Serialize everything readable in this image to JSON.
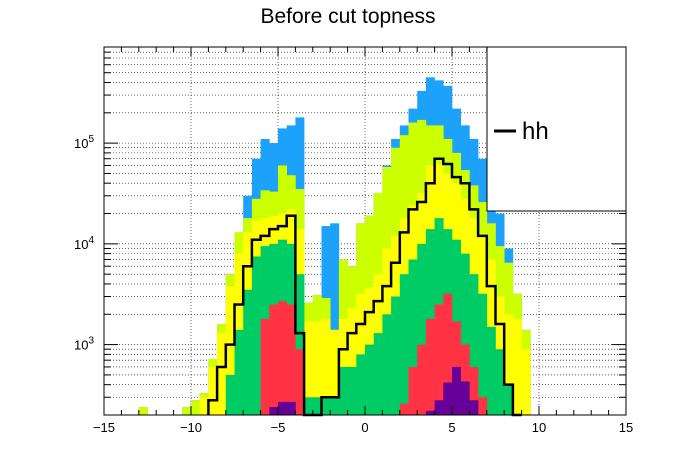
{
  "chart_data": {
    "type": "area",
    "title": "Before cut topness",
    "xlabel": "",
    "ylabel": "",
    "x_scale": "linear",
    "y_scale": "log",
    "xlim": [
      -15,
      15
    ],
    "ylim": [
      200,
      900000
    ],
    "grid": true,
    "x_ticks": [
      -15,
      -10,
      -5,
      0,
      5,
      10,
      15
    ],
    "x_tick_labels": [
      "−15",
      "−10",
      "−5",
      "0",
      "5",
      "10",
      "15"
    ],
    "y_ticks": [
      1000,
      10000,
      100000
    ],
    "y_tick_labels": [
      {
        "base": "10",
        "exp": "3"
      },
      {
        "base": "10",
        "exp": "4"
      },
      {
        "base": "10",
        "exp": "5"
      }
    ],
    "bin_width": 0.5,
    "stack_bins": [
      -13,
      -10.5,
      -10,
      -9.5,
      -9,
      -8.5,
      -8,
      -7.5,
      -7,
      -6.5,
      -6,
      -5.5,
      -5,
      -4.5,
      -4,
      -3.5,
      -3,
      -2.5,
      -2,
      -1.5,
      -1,
      -0.5,
      0,
      0.5,
      1,
      1.5,
      2,
      2.5,
      3,
      3.5,
      4,
      4.5,
      5,
      5.5,
      6,
      6.5,
      7,
      7.5,
      8,
      8.5,
      9,
      9.5
    ],
    "stack_layers": [
      {
        "color": "#1ca2fa",
        "values": [
          240,
          240,
          280,
          330,
          720,
          1600,
          5000,
          13000,
          30000,
          70000,
          110000,
          100000,
          140000,
          150000,
          180000,
          2600,
          3100,
          15000,
          16000,
          7000,
          6000,
          16000,
          19000,
          32000,
          60000,
          110000,
          150000,
          220000,
          330000,
          450000,
          420000,
          370000,
          220000,
          150000,
          110000,
          70000,
          36000,
          20000,
          9000,
          3200,
          1400,
          200
        ]
      },
      {
        "color": "#ccff00",
        "values": [
          240,
          240,
          280,
          330,
          720,
          1600,
          5000,
          13000,
          18000,
          28000,
          34000,
          33000,
          60000,
          48000,
          35000,
          2600,
          3100,
          2900,
          1400,
          7000,
          6000,
          16000,
          19000,
          32000,
          58000,
          90000,
          120000,
          160000,
          170000,
          150000,
          150000,
          110000,
          80000,
          54000,
          38000,
          26000,
          16000,
          9500,
          6500,
          3200,
          1400,
          200
        ]
      },
      {
        "color": "#ffff00",
        "values": [
          200,
          200,
          200,
          300,
          600,
          1300,
          3800,
          8000,
          13000,
          17000,
          18000,
          19000,
          20000,
          22000,
          14000,
          1700,
          1700,
          1800,
          1400,
          1800,
          2300,
          3200,
          3700,
          5000,
          9000,
          12000,
          18000,
          24000,
          32000,
          60000,
          62000,
          50000,
          40000,
          28000,
          18000,
          12000,
          7000,
          3000,
          2000,
          1800,
          900,
          200
        ]
      },
      {
        "color": "#00cc66",
        "values": [
          0,
          0,
          0,
          0,
          0,
          0,
          500,
          1400,
          3500,
          7500,
          9500,
          10000,
          11000,
          10000,
          5000,
          300,
          300,
          300,
          300,
          600,
          600,
          800,
          1000,
          1300,
          2000,
          3000,
          5000,
          7000,
          10000,
          14000,
          18000,
          14000,
          11000,
          8000,
          5000,
          3200,
          1500,
          900,
          400,
          200,
          200,
          0
        ]
      },
      {
        "color": "#ff3344",
        "values": [
          0,
          0,
          0,
          0,
          0,
          0,
          0,
          0,
          0,
          0,
          1800,
          2500,
          2700,
          2500,
          900,
          0,
          0,
          0,
          0,
          0,
          0,
          0,
          0,
          0,
          0,
          0,
          260,
          600,
          1000,
          1800,
          2500,
          3200,
          1700,
          1000,
          600,
          300,
          0,
          0,
          0,
          0,
          0,
          0
        ]
      },
      {
        "color": "#660099",
        "values": [
          0,
          0,
          0,
          0,
          0,
          0,
          0,
          0,
          0,
          0,
          0,
          240,
          270,
          270,
          0,
          0,
          0,
          0,
          0,
          0,
          0,
          0,
          0,
          0,
          0,
          0,
          0,
          0,
          0,
          220,
          280,
          420,
          600,
          430,
          280,
          0,
          0,
          0,
          0,
          0,
          0,
          0
        ]
      }
    ],
    "series": [
      {
        "name": "hh",
        "color": "#000000",
        "draw": "step",
        "bin_edges_start": -9,
        "bin_width": 0.5,
        "values": [
          280,
          600,
          1000,
          2500,
          6000,
          11000,
          12000,
          14000,
          15000,
          19000,
          1300,
          200,
          200,
          300,
          300,
          900,
          1300,
          1600,
          2100,
          2700,
          3800,
          6500,
          13000,
          22000,
          26000,
          40000,
          70000,
          62000,
          46000,
          40000,
          22000,
          12000,
          3800,
          1600,
          400,
          200
        ]
      }
    ],
    "legend": {
      "position": "top-right",
      "entries": [
        "hh"
      ]
    }
  }
}
